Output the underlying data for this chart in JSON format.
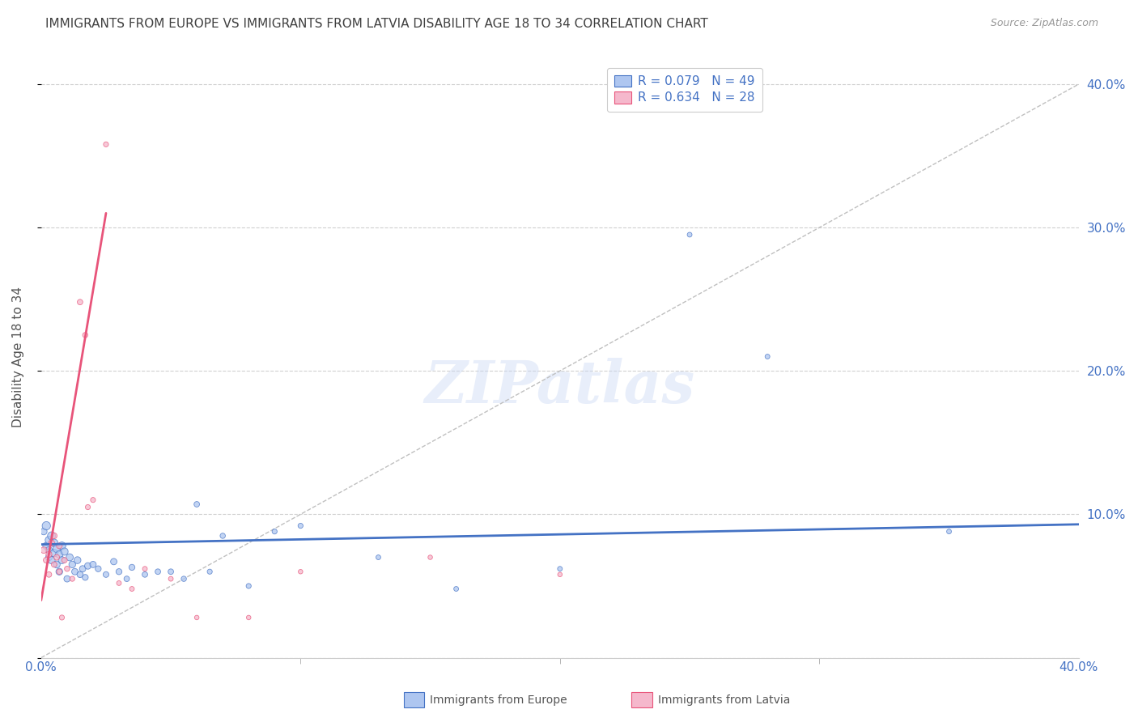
{
  "title": "IMMIGRANTS FROM EUROPE VS IMMIGRANTS FROM LATVIA DISABILITY AGE 18 TO 34 CORRELATION CHART",
  "source": "Source: ZipAtlas.com",
  "ylabel": "Disability Age 18 to 34",
  "ytick_labels": [
    "",
    "10.0%",
    "20.0%",
    "30.0%",
    "40.0%"
  ],
  "ytick_values": [
    0.0,
    0.1,
    0.2,
    0.3,
    0.4
  ],
  "xlim": [
    0.0,
    0.4
  ],
  "ylim": [
    0.0,
    0.42
  ],
  "legend_europe_r": "R = 0.079",
  "legend_europe_n": "N = 49",
  "legend_latvia_r": "R = 0.634",
  "legend_latvia_n": "N = 28",
  "legend_label_europe": "Immigrants from Europe",
  "legend_label_latvia": "Immigrants from Latvia",
  "watermark": "ZIPatlas",
  "europe_color": "#aec6f0",
  "europe_line_color": "#4472c4",
  "latvia_color": "#f5b8cc",
  "latvia_line_color": "#e8547a",
  "axis_label_color": "#4472c4",
  "title_color": "#404040",
  "grid_color": "#d0d0d0",
  "europe_scatter_x": [
    0.001,
    0.002,
    0.002,
    0.003,
    0.003,
    0.003,
    0.004,
    0.004,
    0.005,
    0.005,
    0.006,
    0.006,
    0.007,
    0.007,
    0.008,
    0.008,
    0.009,
    0.01,
    0.011,
    0.012,
    0.013,
    0.014,
    0.015,
    0.016,
    0.017,
    0.018,
    0.02,
    0.022,
    0.025,
    0.028,
    0.03,
    0.033,
    0.035,
    0.04,
    0.045,
    0.05,
    0.055,
    0.06,
    0.065,
    0.07,
    0.08,
    0.09,
    0.1,
    0.13,
    0.16,
    0.2,
    0.25,
    0.28,
    0.35
  ],
  "europe_scatter_y": [
    0.088,
    0.092,
    0.078,
    0.082,
    0.075,
    0.07,
    0.085,
    0.068,
    0.08,
    0.073,
    0.076,
    0.065,
    0.072,
    0.06,
    0.078,
    0.068,
    0.074,
    0.055,
    0.07,
    0.065,
    0.06,
    0.068,
    0.058,
    0.062,
    0.056,
    0.064,
    0.065,
    0.062,
    0.058,
    0.067,
    0.06,
    0.055,
    0.063,
    0.058,
    0.06,
    0.06,
    0.055,
    0.107,
    0.06,
    0.085,
    0.05,
    0.088,
    0.092,
    0.07,
    0.048,
    0.062,
    0.295,
    0.21,
    0.088
  ],
  "europe_scatter_size": [
    35,
    55,
    40,
    45,
    38,
    35,
    50,
    42,
    48,
    44,
    46,
    38,
    44,
    36,
    48,
    40,
    42,
    32,
    40,
    36,
    32,
    38,
    30,
    32,
    28,
    34,
    32,
    28,
    26,
    32,
    28,
    24,
    28,
    24,
    24,
    24,
    22,
    24,
    20,
    22,
    20,
    20,
    20,
    18,
    18,
    18,
    18,
    18,
    18
  ],
  "latvia_scatter_x": [
    0.001,
    0.002,
    0.003,
    0.003,
    0.004,
    0.005,
    0.005,
    0.006,
    0.007,
    0.007,
    0.008,
    0.009,
    0.01,
    0.012,
    0.015,
    0.017,
    0.018,
    0.02,
    0.025,
    0.03,
    0.035,
    0.04,
    0.05,
    0.06,
    0.08,
    0.1,
    0.15,
    0.2
  ],
  "latvia_scatter_y": [
    0.075,
    0.068,
    0.058,
    0.072,
    0.08,
    0.065,
    0.085,
    0.07,
    0.06,
    0.078,
    0.028,
    0.068,
    0.062,
    0.055,
    0.248,
    0.225,
    0.105,
    0.11,
    0.358,
    0.052,
    0.048,
    0.062,
    0.055,
    0.028,
    0.028,
    0.06,
    0.07,
    0.058
  ],
  "latvia_scatter_size": [
    32,
    28,
    24,
    28,
    30,
    24,
    28,
    26,
    22,
    26,
    20,
    24,
    22,
    20,
    24,
    22,
    20,
    20,
    20,
    18,
    18,
    18,
    18,
    16,
    16,
    16,
    16,
    16
  ],
  "europe_trend_x": [
    0.0,
    0.4
  ],
  "europe_trend_y": [
    0.079,
    0.093
  ],
  "latvia_trend_x": [
    0.0,
    0.025
  ],
  "latvia_trend_y": [
    0.04,
    0.31
  ],
  "ref_line_x": [
    0.0,
    0.4
  ],
  "ref_line_y": [
    0.0,
    0.4
  ]
}
